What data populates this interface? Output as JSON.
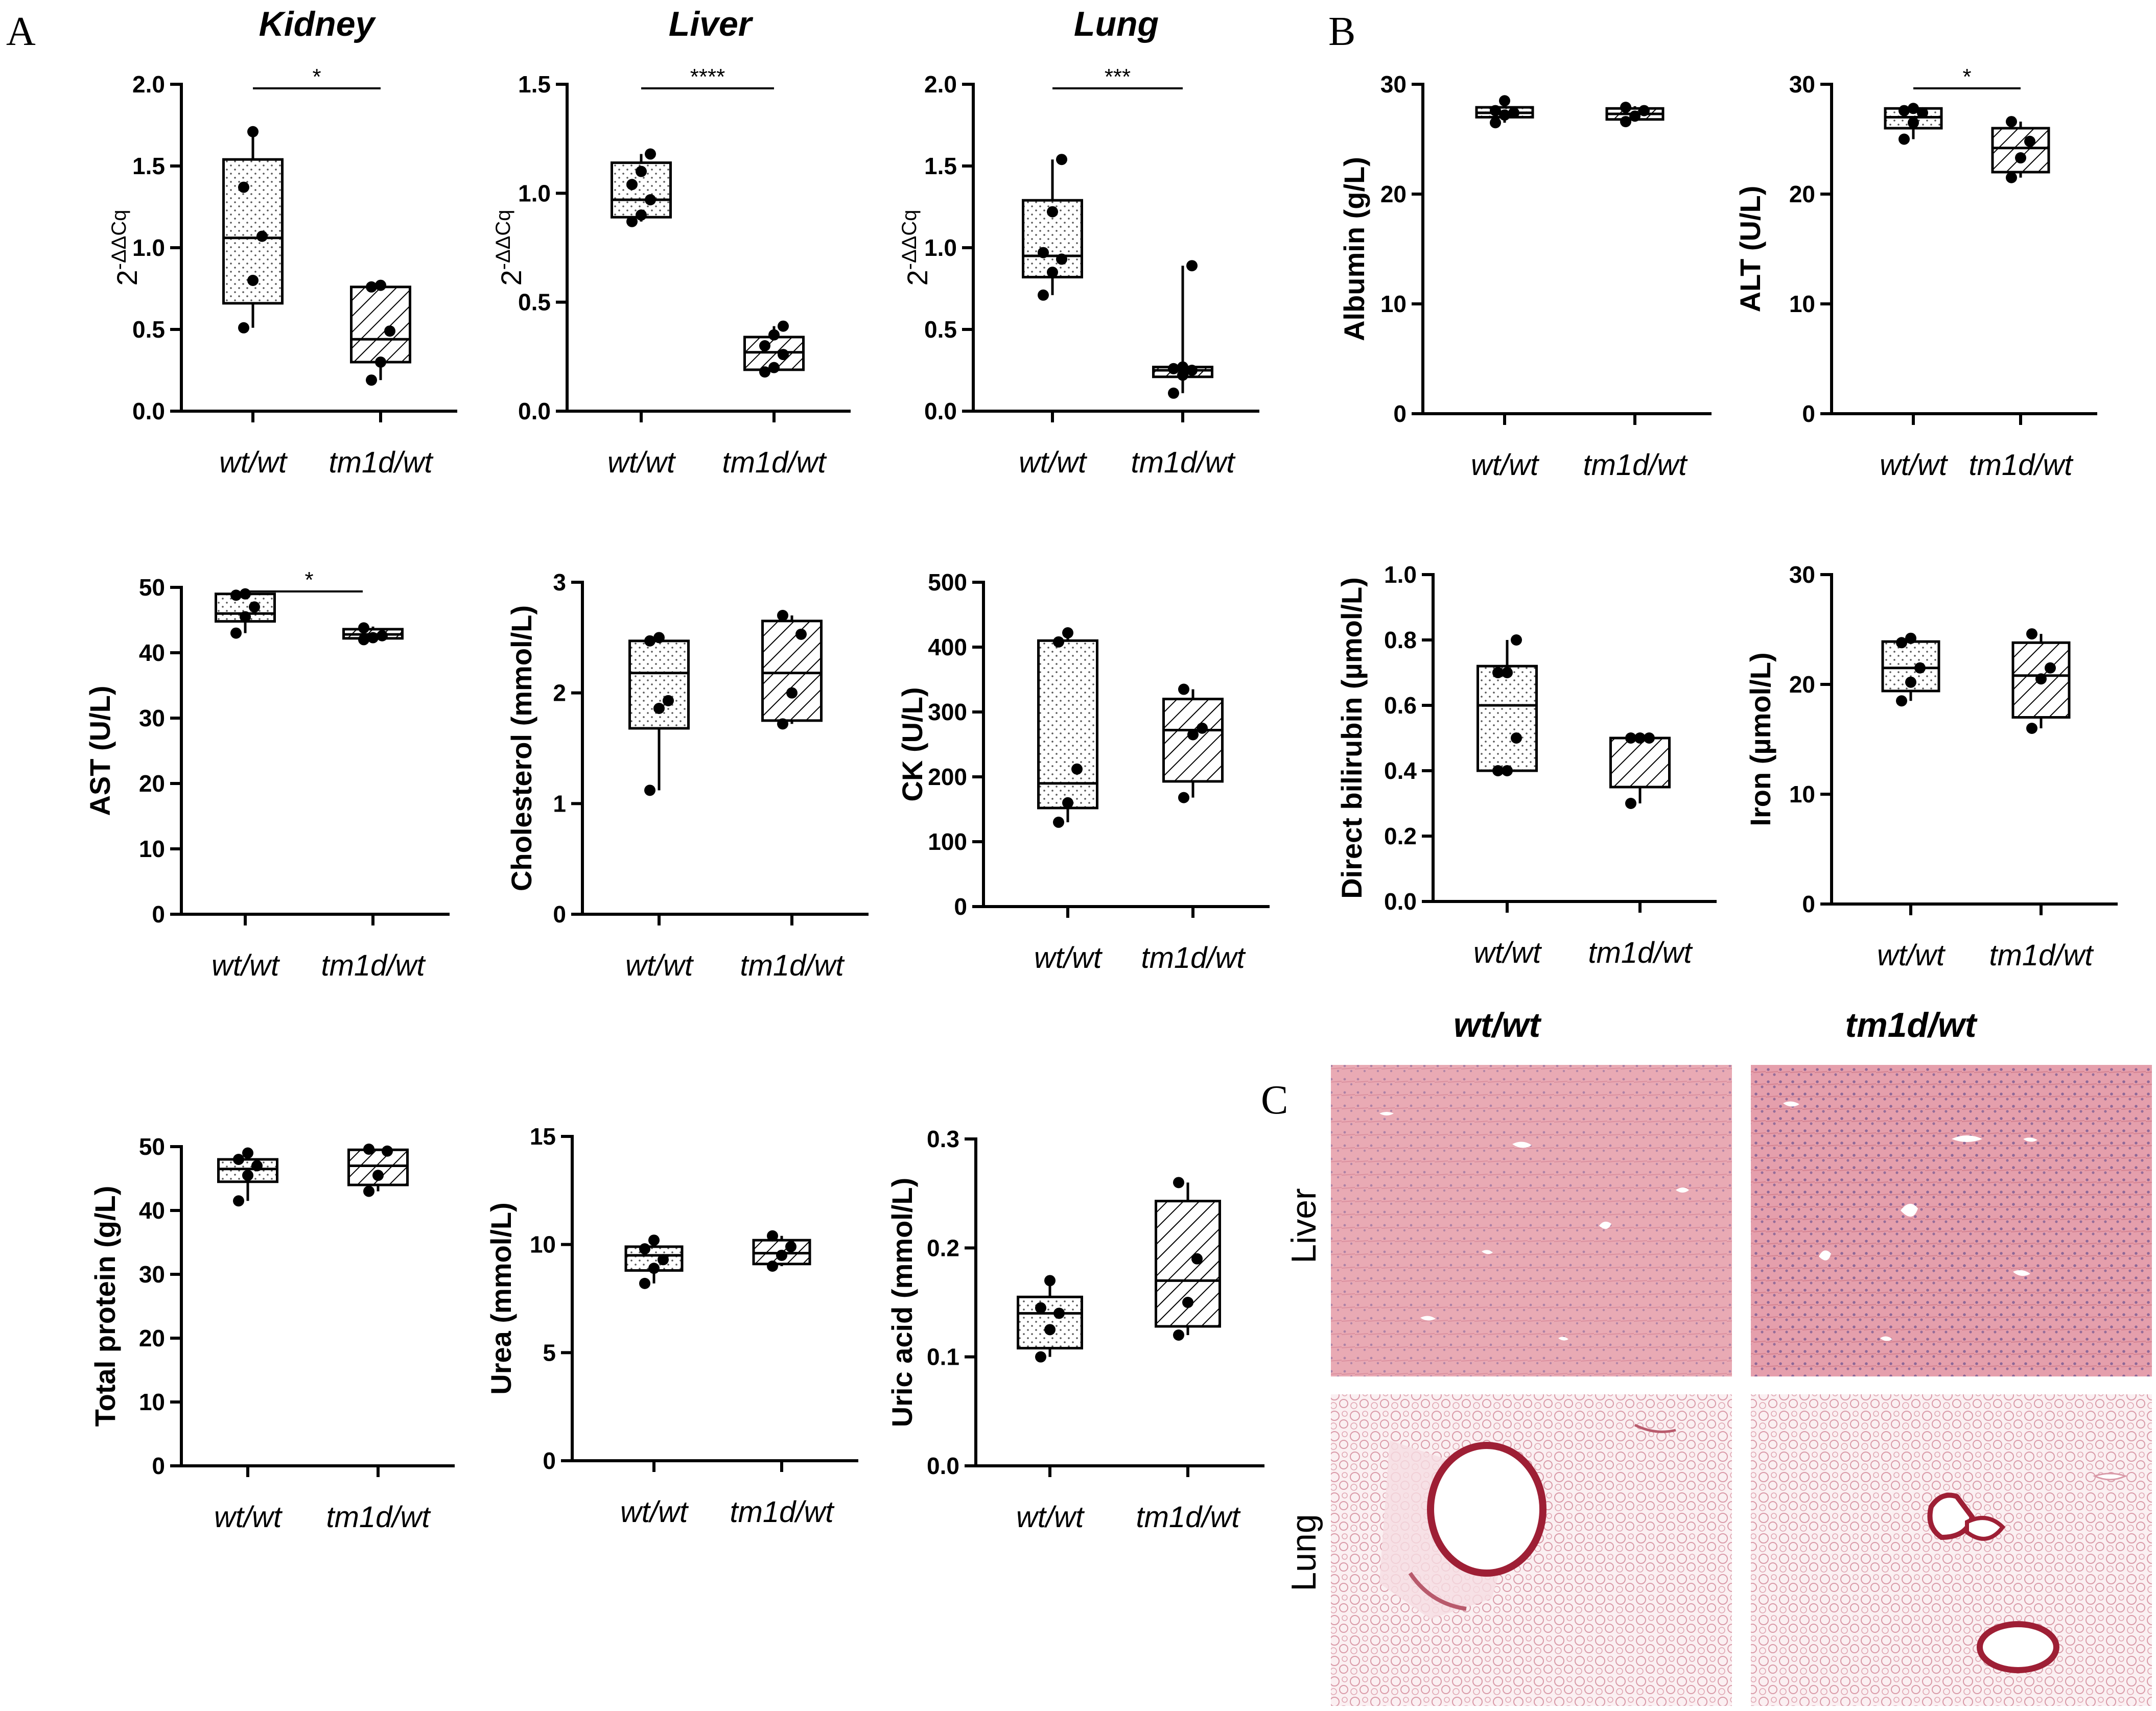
{
  "panel_labels": {
    "a": "A",
    "b": "B",
    "c": "C"
  },
  "groups": [
    "wt/wt",
    "tm1d/wt"
  ],
  "chart_data": [
    {
      "id": "kidney",
      "type": "box",
      "title": "Kidney",
      "ylabel": "2-ΔΔCq",
      "ylabel_base": "2",
      "ylabel_sup": "-ΔΔCq",
      "ylim": [
        0,
        2.0
      ],
      "yticks": [
        "0.0",
        "0.5",
        "1.0",
        "1.5",
        "2.0"
      ],
      "categories": [
        "wt/wt",
        "tm1d/wt"
      ],
      "boxes": [
        {
          "min": 0.51,
          "q1": 0.66,
          "median": 1.06,
          "q3": 1.54,
          "max": 1.71,
          "points": [
            0.51,
            0.8,
            1.07,
            1.37,
            1.71
          ],
          "pattern": "dots"
        },
        {
          "min": 0.19,
          "q1": 0.3,
          "median": 0.44,
          "q3": 0.76,
          "max": 0.77,
          "points": [
            0.19,
            0.3,
            0.49,
            0.76,
            0.77
          ],
          "pattern": "hatch"
        }
      ],
      "significance": "*"
    },
    {
      "id": "liver",
      "type": "box",
      "title": "Liver",
      "ylabel": "2-ΔΔCq",
      "ylabel_base": "2",
      "ylabel_sup": "-ΔΔCq",
      "ylim": [
        0,
        1.5
      ],
      "yticks": [
        "0.0",
        "0.5",
        "1.0",
        "1.5"
      ],
      "categories": [
        "wt/wt",
        "tm1d/wt"
      ],
      "boxes": [
        {
          "min": 0.87,
          "q1": 0.89,
          "median": 0.97,
          "q3": 1.14,
          "max": 1.18,
          "points": [
            0.87,
            0.9,
            0.97,
            1.04,
            1.1,
            1.18
          ],
          "pattern": "dots"
        },
        {
          "min": 0.18,
          "q1": 0.19,
          "median": 0.27,
          "q3": 0.34,
          "max": 0.39,
          "points": [
            0.18,
            0.2,
            0.26,
            0.3,
            0.35,
            0.39
          ],
          "pattern": "hatch"
        }
      ],
      "significance": "****"
    },
    {
      "id": "lung",
      "type": "box",
      "title": "Lung",
      "ylabel": "2-ΔΔCq",
      "ylabel_base": "2",
      "ylabel_sup": "-ΔΔCq",
      "ylim": [
        0,
        2.0
      ],
      "yticks": [
        "0.0",
        "0.5",
        "1.0",
        "1.5",
        "2.0"
      ],
      "categories": [
        "wt/wt",
        "tm1d/wt"
      ],
      "boxes": [
        {
          "min": 0.71,
          "q1": 0.82,
          "median": 0.95,
          "q3": 1.29,
          "max": 1.54,
          "points": [
            0.71,
            0.85,
            0.93,
            0.97,
            1.22,
            1.54
          ],
          "pattern": "dots"
        },
        {
          "min": 0.11,
          "q1": 0.21,
          "median": 0.25,
          "q3": 0.27,
          "max": 0.89,
          "points": [
            0.11,
            0.22,
            0.25,
            0.26,
            0.27,
            0.89
          ],
          "pattern": "hatch"
        }
      ],
      "significance": "***"
    },
    {
      "id": "albumin",
      "type": "box",
      "title": "",
      "ylabel": "Albumin (g/L)",
      "ylim": [
        0,
        30
      ],
      "yticks": [
        "0",
        "10",
        "20",
        "30"
      ],
      "categories": [
        "wt/wt",
        "tm1d/wt"
      ],
      "boxes": [
        {
          "min": 26.5,
          "q1": 27.0,
          "median": 27.4,
          "q3": 27.9,
          "max": 28.5,
          "points": [
            26.5,
            27.2,
            27.4,
            27.6,
            28.5
          ],
          "pattern": "dots"
        },
        {
          "min": 26.6,
          "q1": 26.8,
          "median": 27.3,
          "q3": 27.8,
          "max": 28.0,
          "points": [
            26.6,
            27.1,
            27.6,
            27.9
          ],
          "pattern": "hatch"
        }
      ],
      "significance": ""
    },
    {
      "id": "alt",
      "type": "box",
      "title": "",
      "ylabel": "ALT (U/L)",
      "ylim": [
        0,
        30
      ],
      "yticks": [
        "0",
        "10",
        "20",
        "30"
      ],
      "categories": [
        "wt/wt",
        "tm1d/wt"
      ],
      "boxes": [
        {
          "min": 25.0,
          "q1": 26.0,
          "median": 27.0,
          "q3": 27.8,
          "max": 28.0,
          "points": [
            25.0,
            26.5,
            27.4,
            27.6,
            27.8
          ],
          "pattern": "dots"
        },
        {
          "min": 21.5,
          "q1": 22.0,
          "median": 24.2,
          "q3": 26.0,
          "max": 26.6,
          "points": [
            21.5,
            23.3,
            24.8,
            26.6
          ],
          "pattern": "hatch"
        }
      ],
      "significance": "*"
    },
    {
      "id": "ast",
      "type": "box",
      "title": "",
      "ylabel": "AST (U/L)",
      "ylim": [
        0,
        50
      ],
      "yticks": [
        "0",
        "10",
        "20",
        "30",
        "40",
        "50"
      ],
      "categories": [
        "wt/wt",
        "tm1d/wt"
      ],
      "boxes": [
        {
          "min": 43.0,
          "q1": 44.8,
          "median": 46.0,
          "q3": 49.0,
          "max": 49.0,
          "points": [
            43.0,
            45.5,
            47.0,
            48.8,
            49.0
          ],
          "pattern": "dots"
        },
        {
          "min": 42.0,
          "q1": 42.2,
          "median": 42.8,
          "q3": 43.6,
          "max": 44.0,
          "points": [
            42.0,
            42.3,
            42.6,
            43.8
          ],
          "pattern": "hatch"
        }
      ],
      "significance": "*"
    },
    {
      "id": "cholesterol",
      "type": "box",
      "title": "",
      "ylabel": "Cholesterol (mmol/L)",
      "ylim": [
        0,
        3
      ],
      "yticks": [
        "0",
        "1",
        "2",
        "3"
      ],
      "categories": [
        "wt/wt",
        "tm1d/wt"
      ],
      "boxes": [
        {
          "min": 1.12,
          "q1": 1.68,
          "median": 2.18,
          "q3": 2.47,
          "max": 2.5,
          "points": [
            1.12,
            1.86,
            1.93,
            2.47,
            2.5
          ],
          "pattern": "dots"
        },
        {
          "min": 1.72,
          "q1": 1.75,
          "median": 2.18,
          "q3": 2.65,
          "max": 2.7,
          "points": [
            1.72,
            2.0,
            2.53,
            2.7
          ],
          "pattern": "hatch"
        }
      ],
      "significance": ""
    },
    {
      "id": "ck",
      "type": "box",
      "title": "",
      "ylabel": "CK (U/L)",
      "ylim": [
        0,
        500
      ],
      "yticks": [
        "0",
        "100",
        "200",
        "300",
        "400",
        "500"
      ],
      "categories": [
        "wt/wt",
        "tm1d/wt"
      ],
      "boxes": [
        {
          "min": 130,
          "q1": 152,
          "median": 190,
          "q3": 410,
          "max": 422,
          "points": [
            130,
            160,
            212,
            408,
            422
          ],
          "pattern": "dots"
        },
        {
          "min": 168,
          "q1": 193,
          "median": 272,
          "q3": 320,
          "max": 335,
          "points": [
            168,
            265,
            275,
            335
          ],
          "pattern": "hatch"
        }
      ],
      "significance": ""
    },
    {
      "id": "bilirubin",
      "type": "box",
      "title": "",
      "ylabel": "Direct bilirubin (µmol/L)",
      "ylim": [
        0,
        1.0
      ],
      "yticks": [
        "0.0",
        "0.2",
        "0.4",
        "0.6",
        "0.8",
        "1.0"
      ],
      "categories": [
        "wt/wt",
        "tm1d/wt"
      ],
      "boxes": [
        {
          "min": 0.4,
          "q1": 0.4,
          "median": 0.6,
          "q3": 0.72,
          "max": 0.8,
          "points": [
            0.4,
            0.4,
            0.5,
            0.7,
            0.7,
            0.8
          ],
          "pattern": "dots"
        },
        {
          "min": 0.3,
          "q1": 0.35,
          "median": 0.5,
          "q3": 0.5,
          "max": 0.5,
          "points": [
            0.3,
            0.5,
            0.5,
            0.5
          ],
          "pattern": "hatch"
        }
      ],
      "significance": ""
    },
    {
      "id": "iron",
      "type": "box",
      "title": "",
      "ylabel": "Iron (µmol/L)",
      "ylim": [
        0,
        30
      ],
      "yticks": [
        "0",
        "10",
        "20",
        "30"
      ],
      "categories": [
        "wt/wt",
        "tm1d/wt"
      ],
      "boxes": [
        {
          "min": 18.5,
          "q1": 19.4,
          "median": 21.5,
          "q3": 23.9,
          "max": 24.2,
          "points": [
            18.5,
            20.2,
            21.5,
            23.8,
            24.2
          ],
          "pattern": "dots"
        },
        {
          "min": 16.0,
          "q1": 17.0,
          "median": 20.8,
          "q3": 23.8,
          "max": 24.6,
          "points": [
            16.0,
            20.5,
            21.5,
            24.6
          ],
          "pattern": "hatch"
        }
      ],
      "significance": ""
    },
    {
      "id": "total_protein",
      "type": "box",
      "title": "",
      "ylabel": "Total protein (g/L)",
      "ylim": [
        0,
        50
      ],
      "yticks": [
        "0",
        "10",
        "20",
        "30",
        "40",
        "50"
      ],
      "categories": [
        "wt/wt",
        "tm1d/wt"
      ],
      "boxes": [
        {
          "min": 41.5,
          "q1": 44.5,
          "median": 46.5,
          "q3": 48.0,
          "max": 49.0,
          "points": [
            41.5,
            45.5,
            47.0,
            48.0,
            49.0
          ],
          "pattern": "dots"
        },
        {
          "min": 43.0,
          "q1": 44.0,
          "median": 47.0,
          "q3": 49.5,
          "max": 49.6,
          "points": [
            43.0,
            45.5,
            49.3,
            49.6
          ],
          "pattern": "hatch"
        }
      ],
      "significance": ""
    },
    {
      "id": "urea",
      "type": "box",
      "title": "",
      "ylabel": "Urea (mmol/L)",
      "ylim": [
        0,
        15
      ],
      "yticks": [
        "0",
        "5",
        "10",
        "15"
      ],
      "categories": [
        "wt/wt",
        "tm1d/wt"
      ],
      "boxes": [
        {
          "min": 8.2,
          "q1": 8.8,
          "median": 9.5,
          "q3": 9.9,
          "max": 10.2,
          "points": [
            8.2,
            8.9,
            9.3,
            9.8,
            10.2
          ],
          "pattern": "dots"
        },
        {
          "min": 9.0,
          "q1": 9.1,
          "median": 9.6,
          "q3": 10.2,
          "max": 10.4,
          "points": [
            9.0,
            9.5,
            9.9,
            10.4
          ],
          "pattern": "hatch"
        }
      ],
      "significance": ""
    },
    {
      "id": "uric_acid",
      "type": "box",
      "title": "",
      "ylabel": "Uric acid (mmol/L)",
      "ylim": [
        0,
        0.3
      ],
      "yticks": [
        "0.0",
        "0.1",
        "0.2",
        "0.3"
      ],
      "categories": [
        "wt/wt",
        "tm1d/wt"
      ],
      "boxes": [
        {
          "min": 0.1,
          "q1": 0.108,
          "median": 0.14,
          "q3": 0.155,
          "max": 0.17,
          "points": [
            0.1,
            0.125,
            0.14,
            0.145,
            0.17
          ],
          "pattern": "dots"
        },
        {
          "min": 0.12,
          "q1": 0.128,
          "median": 0.17,
          "q3": 0.243,
          "max": 0.26,
          "points": [
            0.12,
            0.15,
            0.19,
            0.26
          ],
          "pattern": "hatch"
        }
      ],
      "significance": ""
    }
  ],
  "histology": {
    "columns": [
      "wt/wt",
      "tm1d/wt"
    ],
    "rows": [
      "Liver",
      "Lung"
    ],
    "colors": {
      "liver_bg": "#e9aab4",
      "liver_dark": "#c66a80",
      "lung_bg": "#f6e6ea",
      "lung_tissue": "#d99aa8",
      "vessel": "#9e1f35"
    }
  }
}
